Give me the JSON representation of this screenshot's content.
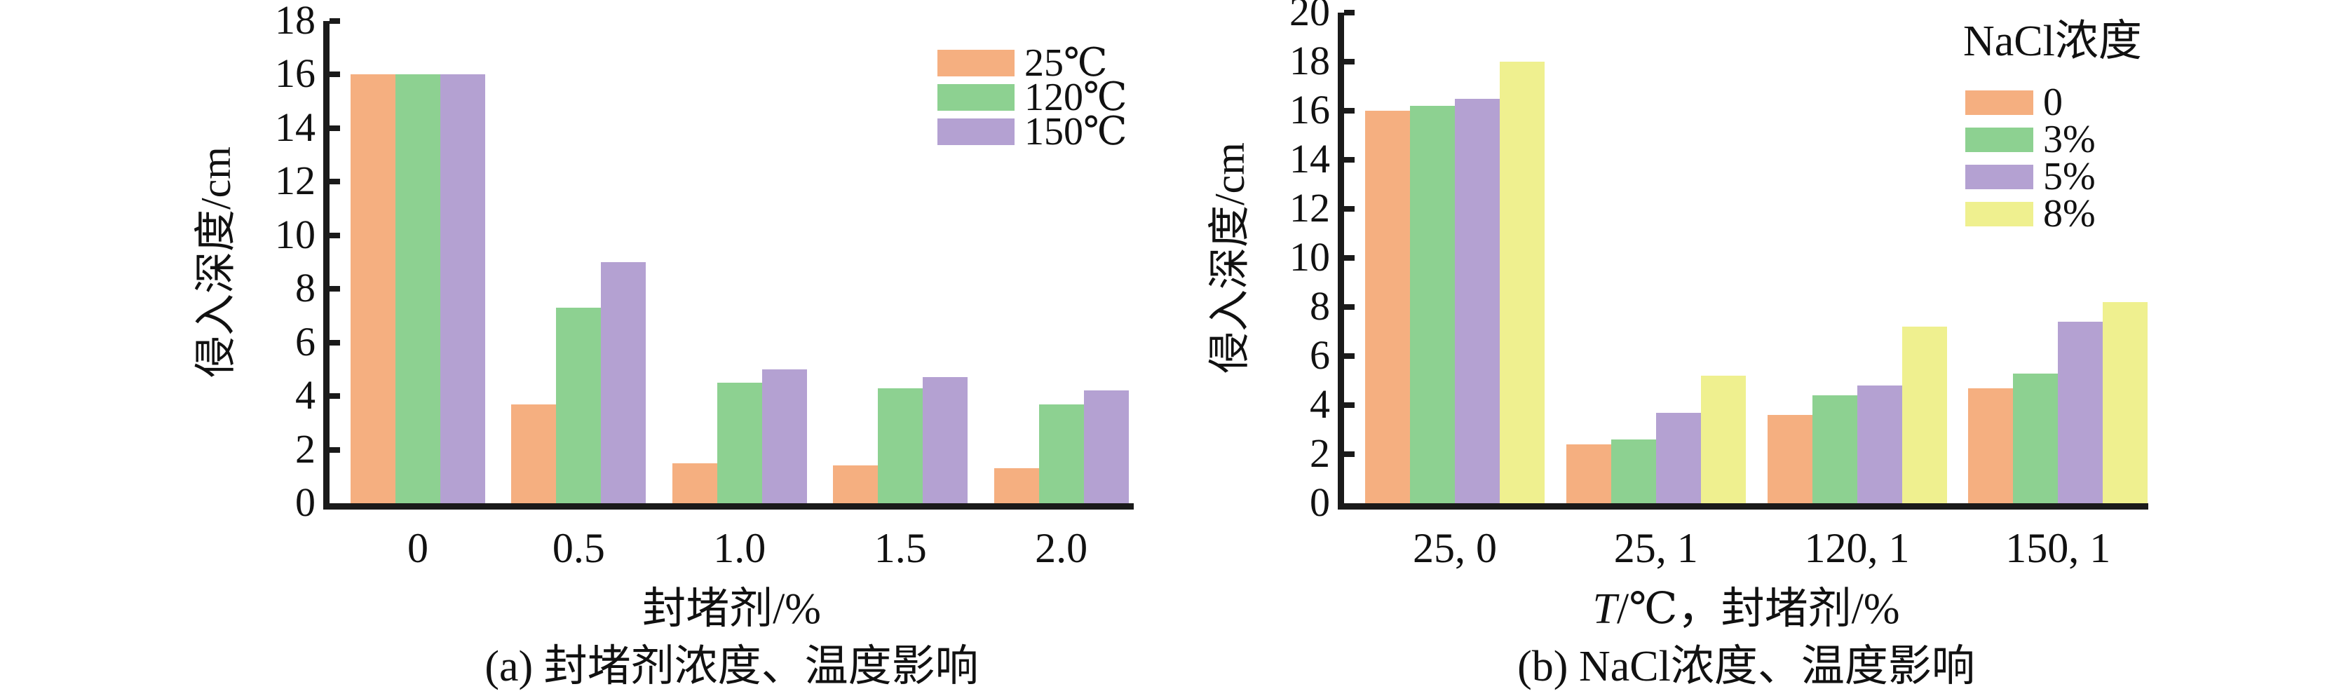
{
  "figure": {
    "background": "#ffffff",
    "text_color": "#111111",
    "axis_color": "#1a1a1a"
  },
  "chart_data": [
    {
      "id": "a",
      "type": "bar",
      "caption": "(a) 封堵剂浓度、温度影响",
      "xlabel": "封堵剂/%",
      "ylabel": "侵入深度/cm",
      "ylim": [
        0,
        18
      ],
      "ytick_step": 2,
      "yticks": [
        "0",
        "2",
        "4",
        "6",
        "8",
        "10",
        "12",
        "14",
        "16",
        "18"
      ],
      "categories": [
        "0",
        "0.5",
        "1.0",
        "1.5",
        "2.0"
      ],
      "grid": false,
      "legend": {
        "title": "",
        "position": "top-right-inside"
      },
      "series": [
        {
          "name": "25℃",
          "color": "#F5AF80",
          "values": [
            16,
            3.7,
            1.5,
            1.4,
            1.3
          ]
        },
        {
          "name": "120℃",
          "color": "#8DD191",
          "values": [
            16,
            7.3,
            4.5,
            4.3,
            3.7
          ]
        },
        {
          "name": "150℃",
          "color": "#B4A1D2",
          "values": [
            16,
            9.0,
            5.0,
            4.7,
            4.2
          ]
        }
      ]
    },
    {
      "id": "b",
      "type": "bar",
      "caption": "(b) NaCl浓度、温度影响",
      "xlabel": "T/℃，封堵剂/%",
      "ylabel": "侵入深度/cm",
      "ylim": [
        0,
        20
      ],
      "ytick_step": 2,
      "yticks": [
        "0",
        "2",
        "4",
        "6",
        "8",
        "10",
        "12",
        "14",
        "16",
        "18",
        "20"
      ],
      "categories": [
        "25, 0",
        "25, 1",
        "120, 1",
        "150, 1"
      ],
      "grid": false,
      "legend": {
        "title": "NaCl浓度",
        "position": "top-right"
      },
      "series": [
        {
          "name": "0",
          "color": "#F5AF80",
          "values": [
            16.0,
            2.4,
            3.6,
            4.7
          ]
        },
        {
          "name": "3%",
          "color": "#8DD191",
          "values": [
            16.2,
            2.6,
            4.4,
            5.3
          ]
        },
        {
          "name": "5%",
          "color": "#B4A1D2",
          "values": [
            16.5,
            3.7,
            4.8,
            7.4
          ]
        },
        {
          "name": "8%",
          "color": "#EFF08F",
          "values": [
            18.0,
            5.2,
            7.2,
            8.2
          ]
        }
      ]
    }
  ]
}
